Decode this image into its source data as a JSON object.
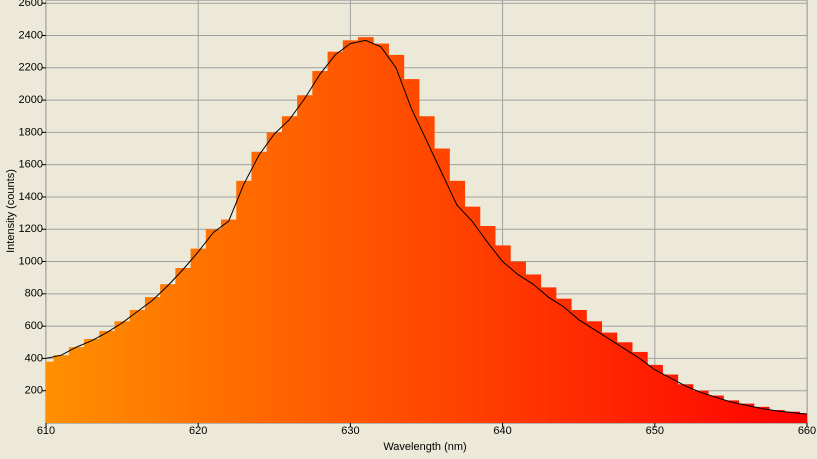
{
  "chart_data": {
    "type": "bar-line",
    "x_label": "Wavelength (nm)",
    "y_label": "Intensity (counts)",
    "x": [
      610,
      611,
      612,
      613,
      614,
      615,
      616,
      617,
      618,
      619,
      620,
      621,
      622,
      623,
      624,
      625,
      626,
      627,
      628,
      629,
      630,
      631,
      632,
      633,
      634,
      635,
      636,
      637,
      638,
      639,
      640,
      641,
      642,
      643,
      644,
      645,
      646,
      647,
      648,
      649,
      650,
      651,
      652,
      653,
      654,
      655,
      656,
      657,
      658,
      659,
      660
    ],
    "series": [
      {
        "type": "bar",
        "colors": [
          "#ff9000",
          "#ff0000"
        ],
        "values": [
          380,
          420,
          470,
          520,
          570,
          630,
          700,
          780,
          860,
          960,
          1080,
          1200,
          1260,
          1500,
          1680,
          1800,
          1900,
          2030,
          2180,
          2300,
          2370,
          2390,
          2350,
          2280,
          2130,
          1900,
          1700,
          1500,
          1340,
          1220,
          1100,
          1000,
          920,
          840,
          770,
          700,
          630,
          560,
          500,
          440,
          360,
          300,
          240,
          200,
          170,
          140,
          120,
          100,
          80,
          70,
          60
        ]
      },
      {
        "type": "line",
        "color": "#000000",
        "values": [
          400,
          420,
          470,
          510,
          560,
          620,
          690,
          760,
          850,
          950,
          1060,
          1180,
          1250,
          1480,
          1660,
          1790,
          1880,
          2010,
          2160,
          2280,
          2350,
          2370,
          2330,
          2200,
          1950,
          1750,
          1550,
          1350,
          1250,
          1120,
          1000,
          920,
          860,
          780,
          720,
          640,
          580,
          520,
          460,
          400,
          330,
          280,
          230,
          190,
          160,
          130,
          110,
          90,
          75,
          65,
          55
        ]
      }
    ],
    "xlim": [
      610,
      660
    ],
    "xticks": [
      610,
      620,
      630,
      640,
      650,
      660
    ],
    "ylim": [
      0,
      2620
    ],
    "yticks": [
      200,
      400,
      600,
      800,
      1000,
      1200,
      1400,
      1600,
      1800,
      2000,
      2200,
      2400,
      2600
    ],
    "grid": true
  }
}
